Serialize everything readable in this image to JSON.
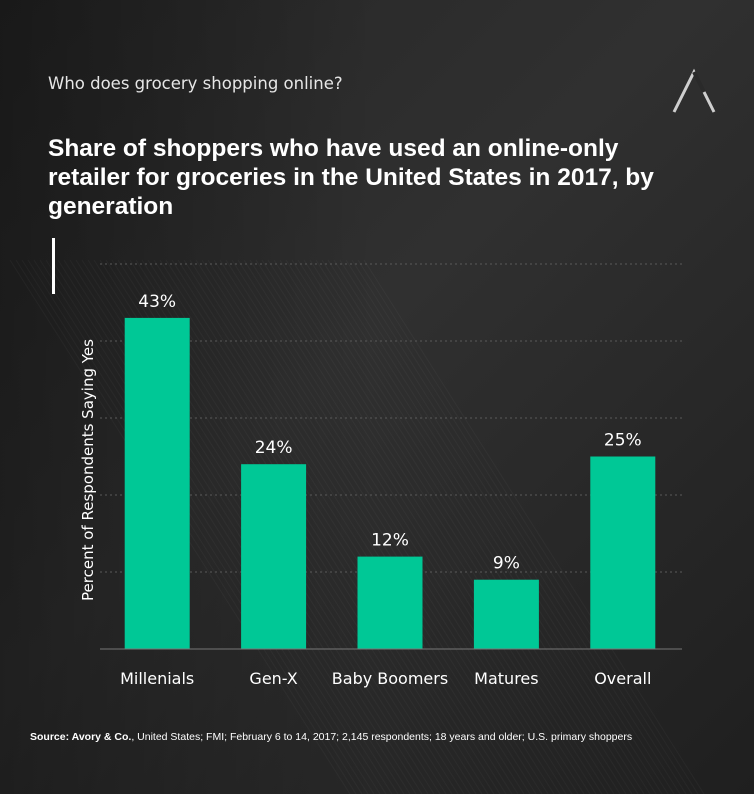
{
  "kicker": "Who does grocery shopping online?",
  "title": "Share of shoppers who have used an online-only retailer for groceries in the United States in 2017, by generation",
  "source": {
    "label": "Source: Avory & Co.",
    "text": ", United States; FMI; February 6 to 14, 2017; 2,145 respondents; 18 years and older; U.S. primary shoppers"
  },
  "colors": {
    "bar": "#00c896",
    "background": "#2a2a2a",
    "gridline": "#5a5a5a"
  },
  "chart_data": {
    "type": "bar",
    "categories": [
      "Millenials",
      "Gen-X",
      "Baby Boomers",
      "Matures",
      "Overall"
    ],
    "values": [
      43,
      24,
      12,
      9,
      25
    ],
    "value_labels": [
      "43%",
      "24%",
      "12%",
      "9%",
      "25%"
    ],
    "title": "Share of shoppers who have used an online-only retailer for groceries in the United States in 2017, by generation",
    "xlabel": "",
    "ylabel": "Percent of Respondents Saying Yes",
    "ylim": [
      0,
      50
    ],
    "grid": true,
    "legend": "none"
  }
}
